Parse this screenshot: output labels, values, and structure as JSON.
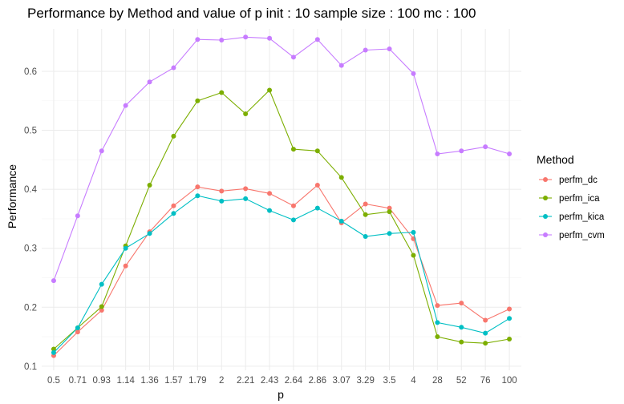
{
  "chart_data": {
    "type": "line",
    "title": "Performance by Method and value of p init :  10 sample size : 100  mc :  100",
    "xlabel": "p",
    "ylabel": "Performance",
    "categories": [
      "0.5",
      "0.71",
      "0.93",
      "1.14",
      "1.36",
      "1.57",
      "1.79",
      "2",
      "2.21",
      "2.43",
      "2.64",
      "2.86",
      "3.07",
      "3.29",
      "3.5",
      "4",
      "28",
      "52",
      "76",
      "100"
    ],
    "ylim": [
      0.093,
      0.672
    ],
    "yticks": [
      "0.1",
      "0.2",
      "0.3",
      "0.4",
      "0.5",
      "0.6"
    ],
    "grid": true,
    "legend": {
      "title": "Method",
      "position": "right"
    },
    "series": [
      {
        "name": "perfm_dc",
        "color": "#F8766D",
        "values": [
          0.118,
          0.158,
          0.195,
          0.27,
          0.328,
          0.372,
          0.404,
          0.397,
          0.401,
          0.393,
          0.372,
          0.407,
          0.343,
          0.375,
          0.368,
          0.316,
          0.203,
          0.207,
          0.178,
          0.197
        ]
      },
      {
        "name": "perfm_ica",
        "color": "#7CAE00",
        "values": [
          0.129,
          0.165,
          0.201,
          0.304,
          0.407,
          0.49,
          0.55,
          0.564,
          0.528,
          0.568,
          0.468,
          0.465,
          0.42,
          0.357,
          0.362,
          0.288,
          0.15,
          0.141,
          0.139,
          0.146
        ]
      },
      {
        "name": "perfm_kica",
        "color": "#00BFC4",
        "values": [
          0.123,
          0.165,
          0.239,
          0.3,
          0.325,
          0.359,
          0.389,
          0.38,
          0.384,
          0.364,
          0.348,
          0.368,
          0.346,
          0.32,
          0.325,
          0.327,
          0.174,
          0.166,
          0.156,
          0.181
        ]
      },
      {
        "name": "perfm_cvm",
        "color": "#C77CFF",
        "values": [
          0.245,
          0.355,
          0.465,
          0.542,
          0.582,
          0.606,
          0.654,
          0.653,
          0.658,
          0.656,
          0.624,
          0.654,
          0.61,
          0.636,
          0.638,
          0.596,
          0.46,
          0.465,
          0.472,
          0.46
        ]
      }
    ]
  }
}
